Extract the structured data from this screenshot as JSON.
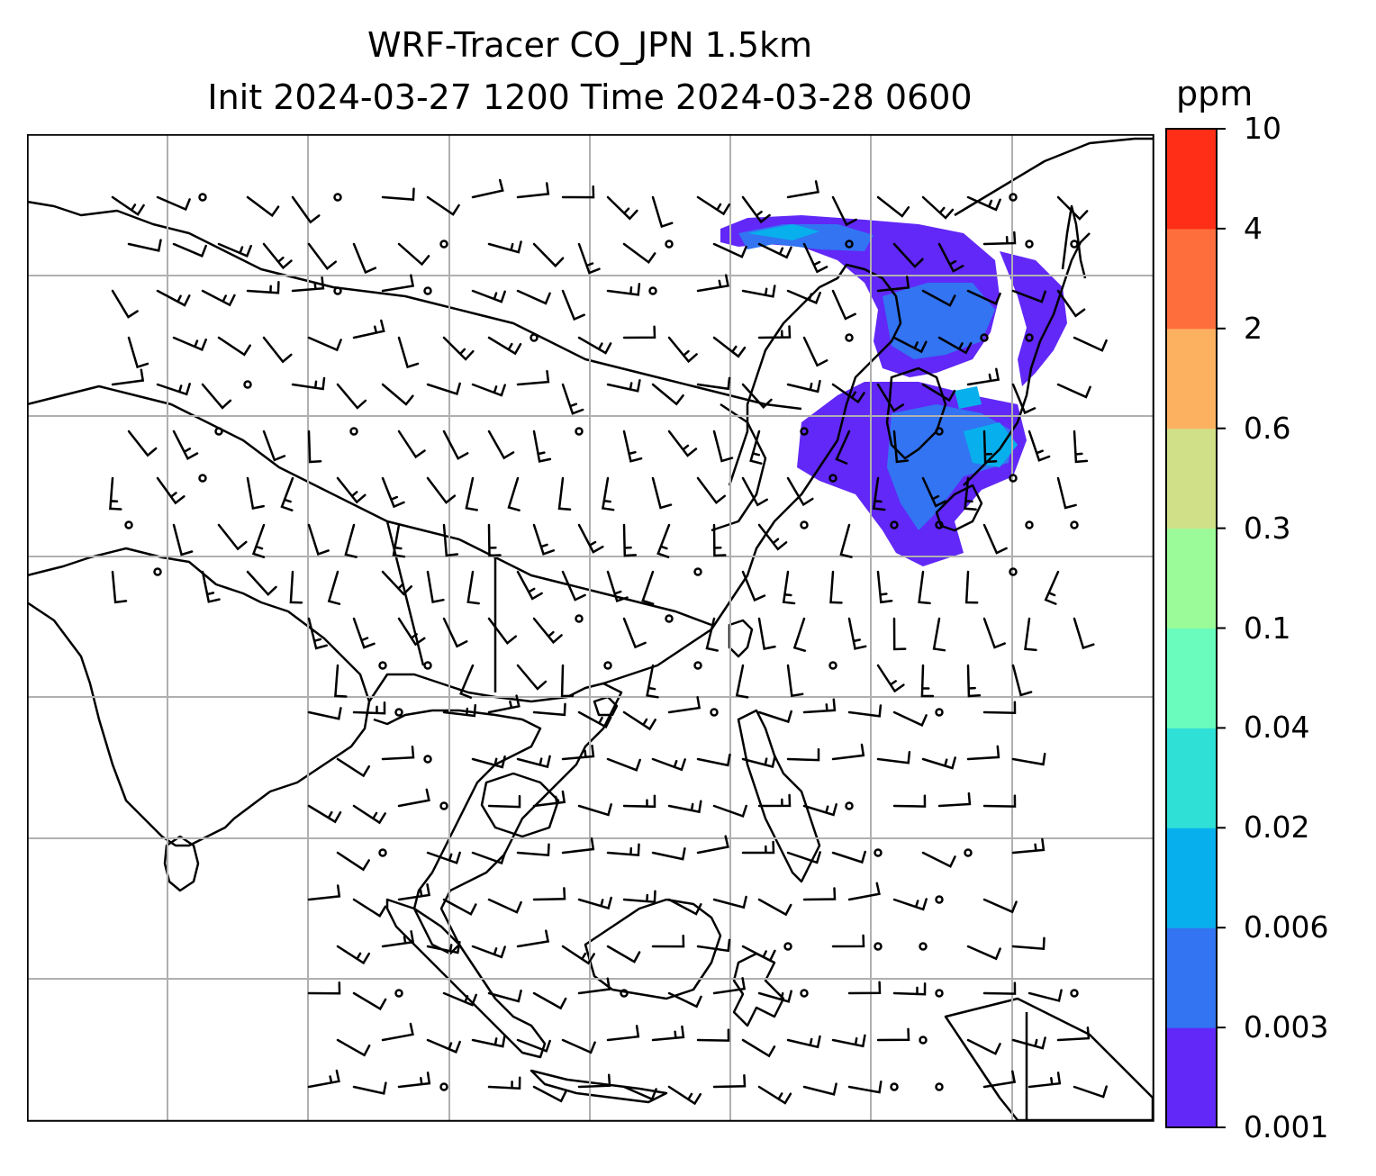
{
  "title": {
    "line1": "WRF-Tracer CO_JPN 1.5km",
    "line2": "Init 2024-03-27 1200 Time 2024-03-28 0600"
  },
  "colorbar": {
    "unit": "ppm",
    "ticks": [
      "10",
      "4",
      "2",
      "0.6",
      "0.3",
      "0.1",
      "0.04",
      "0.02",
      "0.006",
      "0.003",
      "0.001"
    ],
    "levels": [
      0.001,
      0.003,
      0.006,
      0.02,
      0.04,
      0.1,
      0.3,
      0.6,
      2,
      4,
      10
    ],
    "colors": [
      "#6128f7",
      "#3274f2",
      "#07b0ec",
      "#2fe0d6",
      "#69fcbd",
      "#9bfb98",
      "#d0e088",
      "#fcb161",
      "#fd6e3c",
      "#fe2e17"
    ]
  },
  "map": {
    "plume_colors": [
      "#6128f7",
      "#3274f2",
      "#07b0ec"
    ],
    "gridline_color": "#b0b0b0"
  }
}
